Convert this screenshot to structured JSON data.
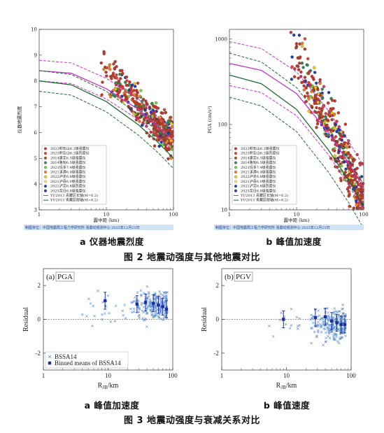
{
  "figure2": {
    "caption": "图 2 地震动强度与其他地震对比",
    "panel_a": {
      "sub_caption": "a 仪器地震烈度",
      "ylabel": "仪器地震烈度",
      "xlabel": "震中距 (km)",
      "source": "制图单位：中国地震局工程力学研究所 强震动观测中心 2025年12月21日",
      "legend": [
        "2023积石山6.2级强震仪",
        "2023积石山6.2级烈度仪",
        "2014康定6.3级强震仪",
        "2014鲁甸6.5级强震仪",
        "2021玛多7.4级强震仪",
        "2021漾濞6.4级强震仪",
        "2022泸定6.8级强震仪",
        "2021泸县6.0级强震仪",
        "2022泸定6.8级烈度仪",
        "2025定日6.8级强震仪",
        "YU2013 青藏区长轴(M=6.2)",
        "YU2013 青藏区短轴(M=6.2)"
      ],
      "legend_colors": [
        "#c0392b",
        "#d64541",
        "#8e5a3c",
        "#2e8b57",
        "#7ac943",
        "#e67e22",
        "#f1c40f",
        "#f7dc6f",
        "#1f3fa8",
        "#2b3a9a",
        "#cc33cc",
        "#1e6b2e"
      ]
    },
    "panel_b": {
      "sub_caption": "b 峰值加速度",
      "ylabel": "PGA (cm/s²)",
      "xlabel": "震中距 (km)",
      "source": "制图单位：中国地震局工程力学研究所 强震动观测中心 2025年12月21日",
      "legend": [
        "2023积石山6.2级强震仪",
        "2023积石山6.2级烈度仪",
        "2014康定6.3级强震仪",
        "2014鲁甸6.5级强震仪",
        "2021玛多7.4级强震仪",
        "2021漾濞6.4级强震仪",
        "2022泸定6.8级强震仪",
        "2021泸县6.0级强震仪",
        "2022泸定6.8级烈度仪",
        "2025定日6.8级强震仪",
        "YU2013 青藏区长轴(M=6.2)",
        "YU2013 青藏区短轴(M=6.2)"
      ]
    }
  },
  "figure3": {
    "caption": "图 3 地震动强度与衰减关系对比",
    "panel_a": {
      "sub_caption": "a 峰值加速度",
      "title": "PGA",
      "tag": "(a)",
      "ylabel": "Residual",
      "xlabel_main": "R",
      "xlabel_sub": "JB",
      "xlabel_unit": "/km",
      "legend_cross": "BSSA14",
      "legend_square": "Binned means of BSSA14"
    },
    "panel_b": {
      "sub_caption": "b 峰值速度",
      "title": "PGV",
      "tag": "(b)",
      "ylabel": "Residual",
      "xlabel_main": "R",
      "xlabel_sub": "JB",
      "xlabel_unit": "/km"
    }
  },
  "chart_data": [
    {
      "type": "scatter",
      "title": "",
      "xlabel": "震中距 (km)",
      "ylabel": "仪器地震烈度",
      "xscale": "log",
      "xlim": [
        1,
        100
      ],
      "ylim": [
        3,
        10
      ],
      "x_ticks": [
        1,
        10,
        100
      ],
      "y_ticks": [
        3,
        4,
        5,
        6,
        7,
        8,
        9,
        10
      ],
      "curves": [
        {
          "name": "YU2013 青藏区长轴(M=6.2)",
          "color": "#cc33cc",
          "points": [
            [
              1,
              8.4
            ],
            [
              3,
              8.3
            ],
            [
              10,
              7.7
            ],
            [
              30,
              6.9
            ],
            [
              60,
              6.2
            ],
            [
              100,
              5.7
            ]
          ]
        },
        {
          "name": "YU2013 青藏区短轴(M=6.2)",
          "color": "#1e6b2e",
          "points": [
            [
              1,
              8.0
            ],
            [
              3,
              7.85
            ],
            [
              10,
              7.2
            ],
            [
              30,
              6.3
            ],
            [
              60,
              5.6
            ],
            [
              100,
              5.0
            ]
          ]
        }
      ]
    },
    {
      "type": "scatter",
      "title": "",
      "xlabel": "震中距 (km)",
      "ylabel": "PGA (cm/s²)",
      "xscale": "log",
      "yscale": "log",
      "xlim": [
        1,
        100
      ],
      "ylim": [
        10,
        1300
      ],
      "x_ticks": [
        1,
        10,
        100
      ],
      "y_ticks": [
        10,
        100,
        1000
      ],
      "curves": [
        {
          "name": "YU2013 青藏区长轴(M=6.2)",
          "color": "#cc33cc",
          "points": [
            [
              1,
              520
            ],
            [
              3,
              430
            ],
            [
              10,
              230
            ],
            [
              30,
              80
            ],
            [
              60,
              35
            ],
            [
              100,
              18
            ]
          ]
        },
        {
          "name": "YU2013 青藏区短轴(M=6.2)",
          "color": "#1e6b2e",
          "points": [
            [
              1,
              380
            ],
            [
              3,
              300
            ],
            [
              10,
              150
            ],
            [
              30,
              50
            ],
            [
              60,
              22
            ],
            [
              100,
              11
            ]
          ]
        }
      ]
    },
    {
      "type": "scatter",
      "title": "PGA",
      "xlabel": "RJB/km",
      "ylabel": "Residual",
      "xscale": "log",
      "xlim": [
        1,
        100
      ],
      "ylim": [
        -3,
        3
      ],
      "x_ticks": [
        1,
        10,
        100
      ],
      "y_ticks": [
        -2,
        0,
        2
      ],
      "binned_means": [
        [
          9,
          1.1
        ],
        [
          28,
          0.9
        ],
        [
          38,
          1.0
        ],
        [
          50,
          0.95
        ],
        [
          60,
          0.85
        ],
        [
          70,
          0.75
        ],
        [
          80,
          0.6
        ]
      ],
      "legend": [
        "BSSA14",
        "Binned means of BSSA14"
      ]
    },
    {
      "type": "scatter",
      "title": "PGV",
      "xlabel": "RJB/km",
      "ylabel": "Residual",
      "xscale": "log",
      "xlim": [
        1,
        100
      ],
      "ylim": [
        -3,
        3
      ],
      "x_ticks": [
        1,
        10,
        100
      ],
      "y_ticks": [
        -2,
        0,
        2
      ],
      "binned_means": [
        [
          9,
          0.0
        ],
        [
          28,
          0.1
        ],
        [
          40,
          0.15
        ],
        [
          50,
          -0.1
        ],
        [
          60,
          -0.2
        ],
        [
          70,
          -0.3
        ],
        [
          80,
          -0.3
        ]
      ]
    }
  ]
}
